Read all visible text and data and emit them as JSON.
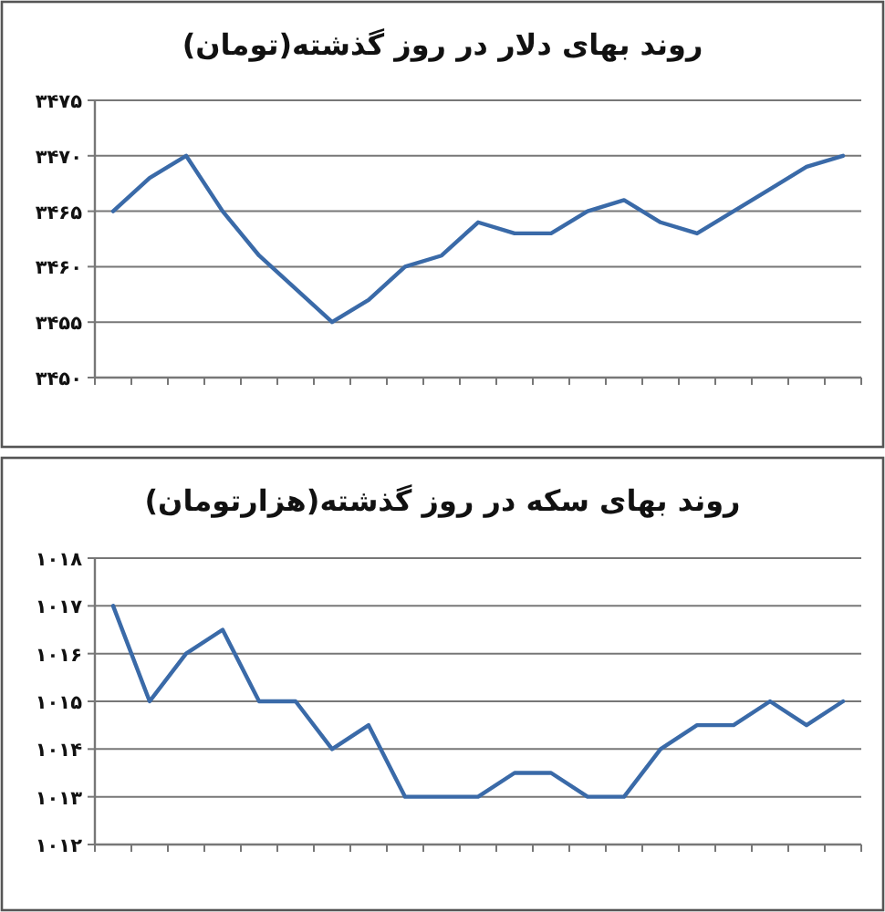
{
  "chart_data": [
    {
      "type": "line",
      "title": "روند بهای دلار در روز گذشته(تومان)",
      "categories": [
        null,
        null,
        null,
        null,
        null,
        null,
        null,
        null,
        null,
        null,
        null,
        null,
        null,
        null,
        null,
        null,
        null,
        null,
        null,
        null,
        null
      ],
      "series": [
        {
          "color": "#3a6aa8",
          "values": [
            3465,
            3468,
            3470,
            3465,
            3461,
            3458,
            3455,
            3457,
            3460,
            3461,
            3464,
            3463,
            3463,
            3465,
            3466,
            3464,
            3463,
            3465,
            3467,
            3469,
            3470
          ]
        }
      ],
      "ylim": [
        3450,
        3475
      ],
      "yticks": [
        {
          "value": 3450,
          "label": "۳۴۵۰"
        },
        {
          "value": 3455,
          "label": "۳۴۵۵"
        },
        {
          "value": 3460,
          "label": "۳۴۶۰"
        },
        {
          "value": 3465,
          "label": "۳۴۶۵"
        },
        {
          "value": 3470,
          "label": "۳۴۷۰"
        },
        {
          "value": 3475,
          "label": "۳۴۷۵"
        }
      ],
      "grid": "y",
      "marker": "none",
      "line_style": "solid",
      "tick_labels": "y"
    },
    {
      "type": "line",
      "title": "روند بهای سکه در روز گذشته(هزارتومان)",
      "categories": [
        null,
        null,
        null,
        null,
        null,
        null,
        null,
        null,
        null,
        null,
        null,
        null,
        null,
        null,
        null,
        null,
        null,
        null,
        null,
        null,
        null
      ],
      "series": [
        {
          "color": "#3a6aa8",
          "values": [
            1017,
            1015,
            1016,
            1016.5,
            1015,
            1015,
            1014,
            1014.5,
            1013,
            1013,
            1013,
            1013.5,
            1013.5,
            1013,
            1013,
            1014,
            1014.5,
            1014.5,
            1015,
            1014.5,
            1015
          ]
        }
      ],
      "ylim": [
        1012,
        1018
      ],
      "yticks": [
        {
          "value": 1012,
          "label": "۱۰۱۲"
        },
        {
          "value": 1013,
          "label": "۱۰۱۳"
        },
        {
          "value": 1014,
          "label": "۱۰۱۴"
        },
        {
          "value": 1015,
          "label": "۱۰۱۵"
        },
        {
          "value": 1016,
          "label": "۱۰۱۶"
        },
        {
          "value": 1017,
          "label": "۱۰۱۷"
        },
        {
          "value": 1018,
          "label": "۱۰۱۸"
        }
      ],
      "grid": "y",
      "marker": "none",
      "line_style": "solid",
      "tick_labels": "y"
    }
  ]
}
